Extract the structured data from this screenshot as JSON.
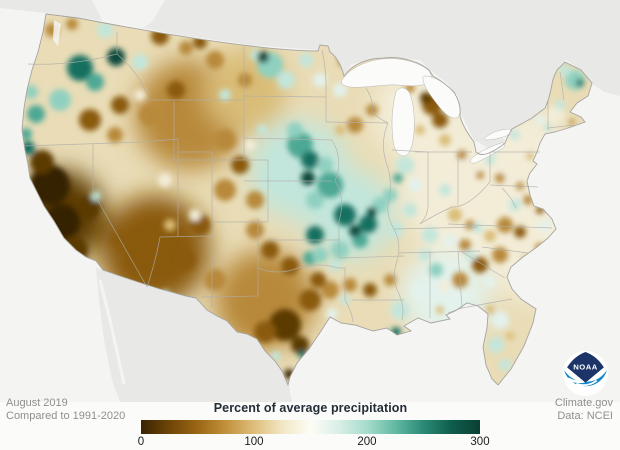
{
  "footer": {
    "period": "August 2019",
    "baseline": "Compared to 1991-2020",
    "credit": "Climate.gov",
    "data_source": "Data: NCEI"
  },
  "legend": {
    "title": "Percent of average precipitation",
    "ticks": [
      "0",
      "100",
      "200",
      "300"
    ],
    "gradient": [
      "#3a2303",
      "#6f4507",
      "#9a6614",
      "#c2913c",
      "#ddbe7a",
      "#f2e7c4",
      "#fdfdf6",
      "#d9efe7",
      "#a6dccb",
      "#63b9a4",
      "#2a8a75",
      "#0f5d4c",
      "#0a4034"
    ],
    "min": 0,
    "max": 300
  },
  "logo": {
    "text": "NOAA",
    "navy": "#1c3467",
    "blue": "#0f86c8"
  },
  "map": {
    "ocean_color": "#f4f4f2",
    "neighbor_color": "#e8e8e6",
    "lake_color": "#fbfbf9",
    "base_color": "#e9dcb6",
    "state_border_color": "#b0aeaa",
    "outline_color": "#a6a49f",
    "palette": {
      "b0": "#352003",
      "b1": "#5c3a06",
      "b2": "#8a5a10",
      "b3": "#b8893a",
      "b4": "#d9bc77",
      "c0": "#f3edd8",
      "t0": "#e3f2ec",
      "t1": "#c2e6dc",
      "t2": "#8fd0c0",
      "t3": "#4da894",
      "t4": "#177061",
      "t5": "#0b4a3c"
    },
    "blobs": [
      [
        190,
        115,
        55,
        "b3"
      ],
      [
        245,
        90,
        42,
        "b4"
      ],
      [
        155,
        250,
        55,
        "b2"
      ],
      [
        60,
        215,
        45,
        "b1"
      ],
      [
        265,
        300,
        50,
        "b3"
      ],
      [
        300,
        170,
        50,
        "t1"
      ],
      [
        350,
        215,
        45,
        "t1"
      ],
      [
        470,
        190,
        70,
        "c0"
      ],
      [
        540,
        250,
        55,
        "c0"
      ],
      [
        420,
        115,
        48,
        "c0"
      ],
      [
        445,
        295,
        45,
        "t0"
      ],
      [
        525,
        150,
        40,
        "c0"
      ],
      [
        50,
        185,
        20,
        "b0"
      ],
      [
        62,
        222,
        18,
        "b0"
      ],
      [
        74,
        250,
        14,
        "b1"
      ],
      [
        42,
        162,
        12,
        "b1"
      ],
      [
        88,
        208,
        12,
        "b1"
      ],
      [
        96,
        196,
        5,
        "t1"
      ],
      [
        28,
        148,
        7,
        "t4"
      ],
      [
        26,
        134,
        6,
        "t3"
      ],
      [
        80,
        68,
        13,
        "t4"
      ],
      [
        116,
        57,
        9,
        "t5"
      ],
      [
        95,
        82,
        9,
        "t3"
      ],
      [
        60,
        100,
        11,
        "t2"
      ],
      [
        36,
        114,
        9,
        "t3"
      ],
      [
        31,
        92,
        7,
        "t2"
      ],
      [
        52,
        30,
        7,
        "b3"
      ],
      [
        72,
        24,
        6,
        "b3"
      ],
      [
        160,
        36,
        9,
        "b2"
      ],
      [
        186,
        48,
        7,
        "b3"
      ],
      [
        140,
        62,
        8,
        "t1"
      ],
      [
        105,
        30,
        8,
        "t1"
      ],
      [
        90,
        120,
        11,
        "b2"
      ],
      [
        120,
        105,
        9,
        "b2"
      ],
      [
        150,
        115,
        11,
        "b3"
      ],
      [
        176,
        90,
        9,
        "b2"
      ],
      [
        140,
        95,
        6,
        "c0"
      ],
      [
        115,
        135,
        8,
        "b3"
      ],
      [
        215,
        60,
        9,
        "b3"
      ],
      [
        245,
        80,
        7,
        "b3"
      ],
      [
        225,
        95,
        6,
        "t1"
      ],
      [
        256,
        55,
        6,
        "t1"
      ],
      [
        200,
        42,
        7,
        "b2"
      ],
      [
        300,
        38,
        7,
        "b4"
      ],
      [
        270,
        65,
        13,
        "t2"
      ],
      [
        263,
        57,
        6,
        "t5"
      ],
      [
        286,
        80,
        9,
        "t1"
      ],
      [
        306,
        60,
        7,
        "t1"
      ],
      [
        320,
        80,
        7,
        "t0"
      ],
      [
        345,
        60,
        7,
        "b3"
      ],
      [
        360,
        50,
        5,
        "b2"
      ],
      [
        225,
        140,
        11,
        "b3"
      ],
      [
        240,
        165,
        9,
        "b2"
      ],
      [
        225,
        190,
        11,
        "b3"
      ],
      [
        255,
        200,
        9,
        "b3"
      ],
      [
        250,
        145,
        6,
        "c0"
      ],
      [
        262,
        130,
        5,
        "t1"
      ],
      [
        200,
        225,
        11,
        "b2"
      ],
      [
        185,
        260,
        11,
        "b2"
      ],
      [
        215,
        280,
        11,
        "b3"
      ],
      [
        165,
        295,
        5,
        "t1"
      ],
      [
        190,
        305,
        5,
        "t1"
      ],
      [
        150,
        300,
        5,
        "t1"
      ],
      [
        165,
        180,
        7,
        "c0"
      ],
      [
        195,
        215,
        6,
        "c0"
      ],
      [
        170,
        225,
        6,
        "b4"
      ],
      [
        135,
        265,
        8,
        "b2"
      ],
      [
        120,
        240,
        8,
        "b2"
      ],
      [
        300,
        145,
        13,
        "t3"
      ],
      [
        310,
        160,
        9,
        "t4"
      ],
      [
        295,
        130,
        8,
        "t2"
      ],
      [
        330,
        185,
        13,
        "t3"
      ],
      [
        315,
        200,
        9,
        "t2"
      ],
      [
        345,
        215,
        11,
        "t4"
      ],
      [
        368,
        224,
        9,
        "t4"
      ],
      [
        360,
        240,
        8,
        "t3"
      ],
      [
        340,
        250,
        9,
        "t2"
      ],
      [
        380,
        205,
        8,
        "t2"
      ],
      [
        395,
        230,
        8,
        "t1"
      ],
      [
        410,
        210,
        7,
        "t1"
      ],
      [
        280,
        160,
        9,
        "t1"
      ],
      [
        270,
        180,
        8,
        "t1"
      ],
      [
        308,
        178,
        7,
        "t5"
      ],
      [
        355,
        231,
        6,
        "t5"
      ],
      [
        372,
        212,
        5,
        "t5"
      ],
      [
        325,
        165,
        8,
        "t2"
      ],
      [
        315,
        235,
        9,
        "t4"
      ],
      [
        310,
        258,
        7,
        "t3"
      ],
      [
        255,
        230,
        9,
        "b3"
      ],
      [
        270,
        250,
        9,
        "b2"
      ],
      [
        290,
        266,
        9,
        "b2"
      ],
      [
        285,
        325,
        16,
        "b1"
      ],
      [
        300,
        345,
        9,
        "b1"
      ],
      [
        265,
        332,
        11,
        "b2"
      ],
      [
        310,
        300,
        11,
        "b2"
      ],
      [
        330,
        290,
        9,
        "b3"
      ],
      [
        250,
        310,
        9,
        "b3"
      ],
      [
        276,
        356,
        5,
        "t1"
      ],
      [
        302,
        354,
        4,
        "t4"
      ],
      [
        289,
        374,
        5,
        "b0"
      ],
      [
        332,
        314,
        6,
        "t0"
      ],
      [
        345,
        300,
        5,
        "t1"
      ],
      [
        318,
        280,
        8,
        "b2"
      ],
      [
        320,
        255,
        8,
        "t2"
      ],
      [
        335,
        265,
        6,
        "t1"
      ],
      [
        350,
        285,
        7,
        "b3"
      ],
      [
        370,
        290,
        7,
        "b2"
      ],
      [
        390,
        280,
        6,
        "b3"
      ],
      [
        400,
        310,
        9,
        "t1"
      ],
      [
        396,
        332,
        5,
        "t4"
      ],
      [
        420,
        290,
        9,
        "t0"
      ],
      [
        436,
        270,
        7,
        "t2"
      ],
      [
        425,
        255,
        6,
        "t1"
      ],
      [
        445,
        286,
        6,
        "c0"
      ],
      [
        355,
        125,
        8,
        "b3"
      ],
      [
        372,
        110,
        6,
        "b3"
      ],
      [
        340,
        130,
        5,
        "b4"
      ],
      [
        340,
        90,
        7,
        "t0"
      ],
      [
        396,
        100,
        7,
        "c0"
      ],
      [
        410,
        88,
        5,
        "b3"
      ],
      [
        400,
        118,
        6,
        "t1"
      ],
      [
        405,
        165,
        9,
        "t1"
      ],
      [
        415,
        185,
        7,
        "t0"
      ],
      [
        398,
        178,
        5,
        "t3"
      ],
      [
        390,
        195,
        7,
        "t2"
      ],
      [
        435,
        175,
        9,
        "c0"
      ],
      [
        445,
        190,
        6,
        "t1"
      ],
      [
        470,
        165,
        9,
        "c0"
      ],
      [
        462,
        155,
        5,
        "b3"
      ],
      [
        480,
        175,
        4,
        "b3"
      ],
      [
        490,
        160,
        5,
        "t1"
      ],
      [
        455,
        215,
        7,
        "b4"
      ],
      [
        470,
        225,
        5,
        "b3"
      ],
      [
        430,
        235,
        8,
        "t1"
      ],
      [
        450,
        240,
        6,
        "t0"
      ],
      [
        465,
        245,
        6,
        "b3"
      ],
      [
        432,
        105,
        10,
        "b2"
      ],
      [
        426,
        98,
        6,
        "b1"
      ],
      [
        440,
        120,
        8,
        "b2"
      ],
      [
        445,
        140,
        6,
        "b4"
      ],
      [
        420,
        130,
        5,
        "b4"
      ],
      [
        525,
        145,
        10,
        "c0"
      ],
      [
        515,
        135,
        5,
        "t1"
      ],
      [
        540,
        120,
        5,
        "t0"
      ],
      [
        530,
        156,
        4,
        "b4"
      ],
      [
        510,
        170,
        9,
        "c0"
      ],
      [
        500,
        178,
        5,
        "b3"
      ],
      [
        520,
        186,
        4,
        "b3"
      ],
      [
        492,
        150,
        5,
        "t1"
      ],
      [
        555,
        115,
        9,
        "c0"
      ],
      [
        560,
        105,
        5,
        "t1"
      ],
      [
        548,
        128,
        4,
        "t1"
      ],
      [
        572,
        122,
        3,
        "b3"
      ],
      [
        535,
        180,
        5,
        "b4"
      ],
      [
        528,
        200,
        5,
        "b3"
      ],
      [
        540,
        210,
        4,
        "b2"
      ],
      [
        515,
        205,
        6,
        "t1"
      ],
      [
        575,
        80,
        10,
        "t2"
      ],
      [
        580,
        83,
        4,
        "t4"
      ],
      [
        565,
        70,
        6,
        "t1"
      ],
      [
        570,
        60,
        5,
        "b4"
      ],
      [
        505,
        225,
        8,
        "b3"
      ],
      [
        520,
        232,
        6,
        "b2"
      ],
      [
        490,
        236,
        6,
        "b4"
      ],
      [
        478,
        228,
        5,
        "t1"
      ],
      [
        545,
        226,
        6,
        "t0"
      ],
      [
        540,
        248,
        5,
        "b3"
      ],
      [
        500,
        255,
        8,
        "b3"
      ],
      [
        480,
        265,
        8,
        "b2"
      ],
      [
        460,
        280,
        8,
        "b3"
      ],
      [
        470,
        255,
        5,
        "t1"
      ],
      [
        490,
        282,
        6,
        "t0"
      ],
      [
        516,
        270,
        6,
        "c0"
      ],
      [
        526,
        260,
        5,
        "b4"
      ],
      [
        500,
        320,
        9,
        "t0"
      ],
      [
        496,
        345,
        8,
        "t1"
      ],
      [
        505,
        365,
        6,
        "t1"
      ],
      [
        490,
        310,
        5,
        "b4"
      ],
      [
        510,
        336,
        4,
        "b4"
      ],
      [
        482,
        316,
        6,
        "t0"
      ],
      [
        455,
        305,
        8,
        "t0"
      ],
      [
        470,
        310,
        6,
        "t1"
      ],
      [
        440,
        310,
        4,
        "b4"
      ]
    ]
  }
}
